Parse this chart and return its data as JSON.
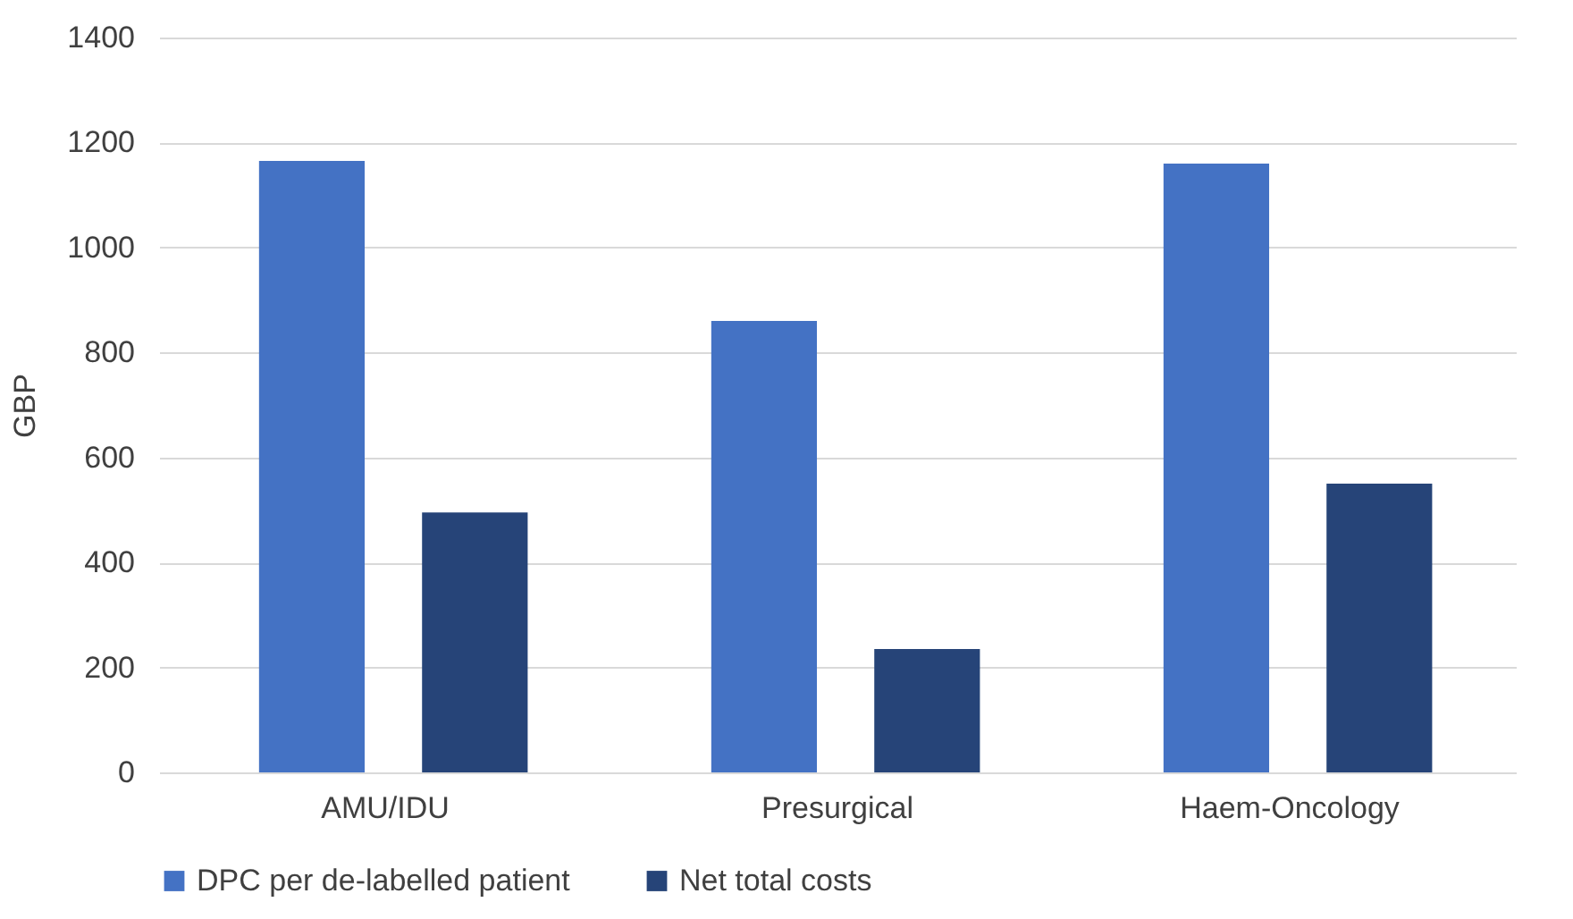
{
  "chart_data": {
    "type": "bar",
    "ylabel": "GBP",
    "categories": [
      "AMU/IDU",
      "Presurgical",
      "Haem-Oncology"
    ],
    "series": [
      {
        "name": "DPC per de-labelled patient",
        "color": "#4472c4",
        "values": [
          1165,
          860,
          1160
        ]
      },
      {
        "name": "Net total costs",
        "color": "#264478",
        "values": [
          495,
          235,
          550
        ]
      }
    ],
    "ylim": [
      0,
      1400
    ],
    "yticks": [
      0,
      200,
      400,
      600,
      800,
      1000,
      1200,
      1400
    ],
    "grid": "y",
    "legend": "bottom"
  }
}
